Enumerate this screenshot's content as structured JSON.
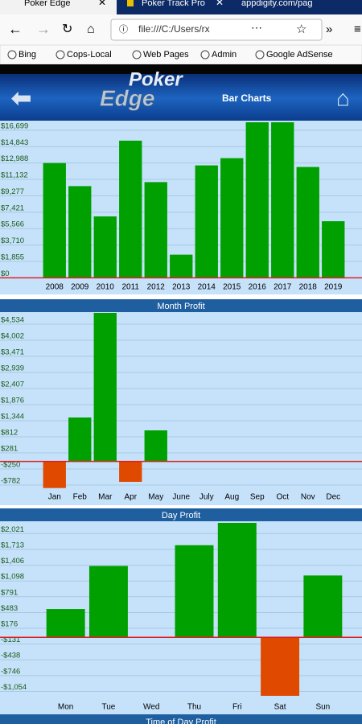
{
  "browser": {
    "tabs": [
      "Poker Edge",
      "Poker Track Pro",
      "appdigity.com/pag"
    ],
    "address": "file:///C:/Users/rx",
    "bookmarks": [
      "Bing",
      "Cops-Local",
      "Web Pages",
      "Admin",
      "Google AdSense"
    ]
  },
  "header": {
    "logo_top": "Poker",
    "logo_bottom": "Edge",
    "title": "Bar Charts"
  },
  "chart_data": [
    {
      "type": "bar",
      "categories": [
        "2008",
        "2009",
        "2010",
        "2011",
        "2012",
        "2013",
        "2014",
        "2015",
        "2016",
        "2017",
        "2018",
        "2019"
      ],
      "values": [
        12988,
        10375,
        6947,
        15520,
        10830,
        2617,
        12720,
        13540,
        17800,
        17800,
        12540,
        6405
      ],
      "color": "#00a000",
      "negative_color": "#e04a00",
      "ylim": [
        -150,
        17600
      ],
      "yticks": [
        {
          "value": 0,
          "label": "$0"
        },
        {
          "value": 1855,
          "label": "$1,855"
        },
        {
          "value": 3710,
          "label": "$3,710"
        },
        {
          "value": 5566,
          "label": "$5,566"
        },
        {
          "value": 7421,
          "label": "$7,421"
        },
        {
          "value": 9277,
          "label": "$9,277"
        },
        {
          "value": 11132,
          "label": "$11,132"
        },
        {
          "value": 12988,
          "label": "$12,988"
        },
        {
          "value": 14843,
          "label": "$14,843"
        },
        {
          "value": 16699,
          "label": "$16,699"
        }
      ],
      "grid": true
    },
    {
      "type": "bar",
      "title": "Month Profit",
      "categories": [
        "Jan",
        "Feb",
        "Mar",
        "Apr",
        "May",
        "June",
        "July",
        "Aug",
        "Sep",
        "Oct",
        "Nov",
        "Dec"
      ],
      "values": [
        -880,
        1451,
        5000,
        -675,
        1026,
        0,
        0,
        0,
        0,
        0,
        0,
        0
      ],
      "color": "#00a000",
      "negative_color": "#e04a00",
      "ylim": [
        -888,
        4906
      ],
      "yticks": [
        {
          "value": -782,
          "label": "-$782"
        },
        {
          "value": -250,
          "label": "-$250"
        },
        {
          "value": 281,
          "label": "$281"
        },
        {
          "value": 812,
          "label": "$812"
        },
        {
          "value": 1344,
          "label": "$1,344"
        },
        {
          "value": 1876,
          "label": "$1,876"
        },
        {
          "value": 2407,
          "label": "$2,407"
        },
        {
          "value": 2939,
          "label": "$2,939"
        },
        {
          "value": 3471,
          "label": "$3,471"
        },
        {
          "value": 4002,
          "label": "$4,002"
        },
        {
          "value": 4534,
          "label": "$4,534"
        }
      ],
      "grid": true
    },
    {
      "type": "bar",
      "title": "Day Profit",
      "categories": [
        "Mon",
        "Tue",
        "Wed",
        "Thu",
        "Fri",
        "Sat",
        "Sun"
      ],
      "values": [
        552,
        1391,
        0,
        1795,
        2260,
        -1140,
        1205
      ],
      "color": "#00a000",
      "negative_color": "#e04a00",
      "ylim": [
        -1187,
        2230
      ],
      "yticks": [
        {
          "value": -1054,
          "label": "-$1,054"
        },
        {
          "value": -746,
          "label": "-$746"
        },
        {
          "value": -438,
          "label": "-$438"
        },
        {
          "value": -131,
          "label": "-$131"
        },
        {
          "value": 176,
          "label": "$176"
        },
        {
          "value": 483,
          "label": "$483"
        },
        {
          "value": 791,
          "label": "$791"
        },
        {
          "value": 1098,
          "label": "$1,098"
        },
        {
          "value": 1406,
          "label": "$1,406"
        },
        {
          "value": 1713,
          "label": "$1,713"
        },
        {
          "value": 2021,
          "label": "$2,021"
        }
      ],
      "grid": true
    }
  ],
  "next_section_title": "Time of Day Profit"
}
